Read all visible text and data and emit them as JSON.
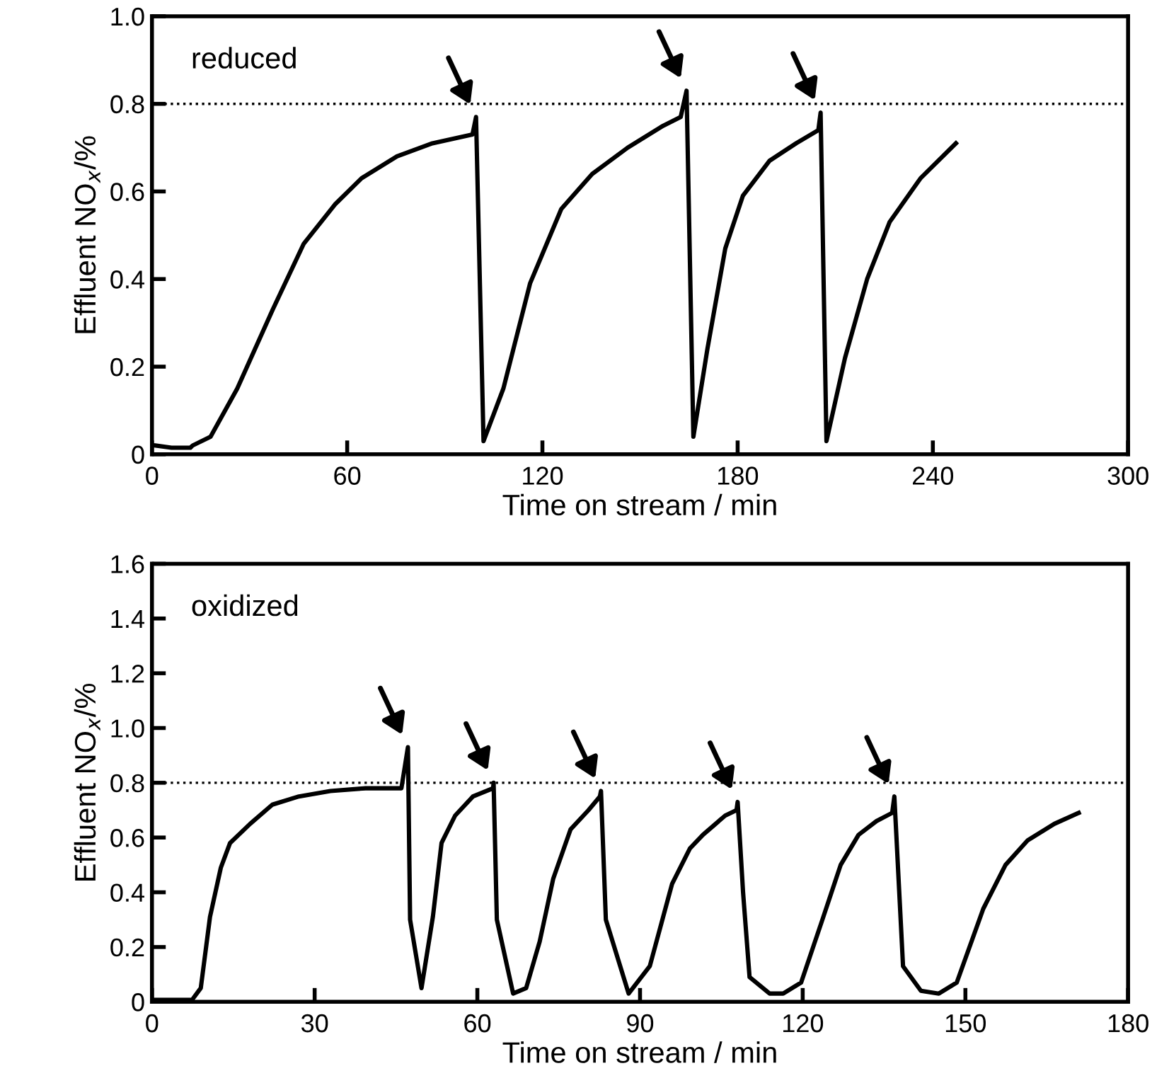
{
  "chart_data": [
    {
      "type": "line",
      "xlabel": "Time on stream / min",
      "ylabel": "Effluent NO$_{x}$/%",
      "annotations": [
        "reduced"
      ],
      "series": [
        {
          "color": "#000000",
          "x": [
            1,
            6,
            11.8,
            12.5,
            18,
            26.2,
            37.1,
            46.6,
            56.2,
            64.4,
            75.3,
            86.2,
            98.5,
            99.6,
            101.9,
            108,
            116.2,
            125.8,
            135.3,
            146.2,
            157.1,
            162.5,
            164.3,
            166.4,
            170.7,
            176.2,
            181.6,
            189.8,
            198,
            204.8,
            205.5,
            207.3,
            213,
            219.8,
            226.7,
            236.2,
            247.1
          ],
          "values": [
            0.02,
            0.015,
            0.015,
            0.02,
            0.04,
            0.15,
            0.33,
            0.48,
            0.57,
            0.63,
            0.68,
            0.71,
            0.73,
            0.77,
            0.03,
            0.15,
            0.39,
            0.56,
            0.64,
            0.7,
            0.75,
            0.77,
            0.83,
            0.04,
            0.24,
            0.47,
            0.59,
            0.67,
            0.71,
            0.74,
            0.78,
            0.03,
            0.22,
            0.4,
            0.53,
            0.63,
            0.71
          ]
        }
      ],
      "xlim": [
        0,
        300
      ],
      "xticks": [
        0,
        60,
        120,
        180,
        240,
        300
      ],
      "ylim": [
        0,
        1
      ],
      "yticks": [
        0,
        0.2,
        0.4,
        0.6,
        0.8,
        {
          "value": 1,
          "label": "1.0"
        }
      ],
      "ref_lines": [
        {
          "axis": "y",
          "value": 0.8,
          "line_style": "dotted",
          "color": "#000000"
        }
      ]
    },
    {
      "type": "line",
      "xlabel": "Time on stream / min",
      "ylabel": "Effluent NO$_{x}$/%",
      "annotations": [
        "oxidized"
      ],
      "series": [
        {
          "color": "#000000",
          "x": [
            0,
            7.4,
            9,
            10.7,
            12.7,
            14.4,
            18.1,
            22.2,
            27.1,
            32.9,
            39.4,
            46,
            47.2,
            47.6,
            49.7,
            51.8,
            53.4,
            55.9,
            59.2,
            62.9,
            63,
            63.6,
            66.6,
            69,
            71.5,
            74,
            77.2,
            80.5,
            82.6,
            82.8,
            83.7,
            87.9,
            91.8,
            95.9,
            99.2,
            101.6,
            105.7,
            107.8,
            108,
            109,
            110.2,
            113.9,
            116.4,
            119.7,
            123.8,
            127,
            130.3,
            133.6,
            136.5,
            136.9,
            138.5,
            141.8,
            145.1,
            148.4,
            153.3,
            157.4,
            161.5,
            166.4,
            170.9
          ],
          "values": [
            0.007,
            0.007,
            0.05,
            0.31,
            0.49,
            0.58,
            0.65,
            0.72,
            0.75,
            0.77,
            0.78,
            0.78,
            0.93,
            0.3,
            0.05,
            0.31,
            0.58,
            0.68,
            0.75,
            0.78,
            0.8,
            0.3,
            0.03,
            0.05,
            0.22,
            0.45,
            0.63,
            0.7,
            0.75,
            0.77,
            0.3,
            0.03,
            0.13,
            0.43,
            0.56,
            0.61,
            0.68,
            0.7,
            0.73,
            0.4,
            0.09,
            0.03,
            0.03,
            0.07,
            0.31,
            0.5,
            0.61,
            0.66,
            0.69,
            0.75,
            0.13,
            0.04,
            0.03,
            0.07,
            0.34,
            0.5,
            0.59,
            0.65,
            0.69
          ]
        }
      ],
      "xlim": [
        0,
        180
      ],
      "xticks": [
        0,
        30,
        60,
        90,
        120,
        150,
        180
      ],
      "ylim": [
        0,
        1.6
      ],
      "yticks": [
        0,
        0.2,
        0.4,
        0.6,
        0.8,
        {
          "value": 1,
          "label": "1.0"
        },
        1.2,
        1.4,
        1.6
      ],
      "ref_lines": [
        {
          "axis": "y",
          "value": 0.8,
          "line_style": "dotted",
          "color": "#000000"
        }
      ]
    }
  ]
}
